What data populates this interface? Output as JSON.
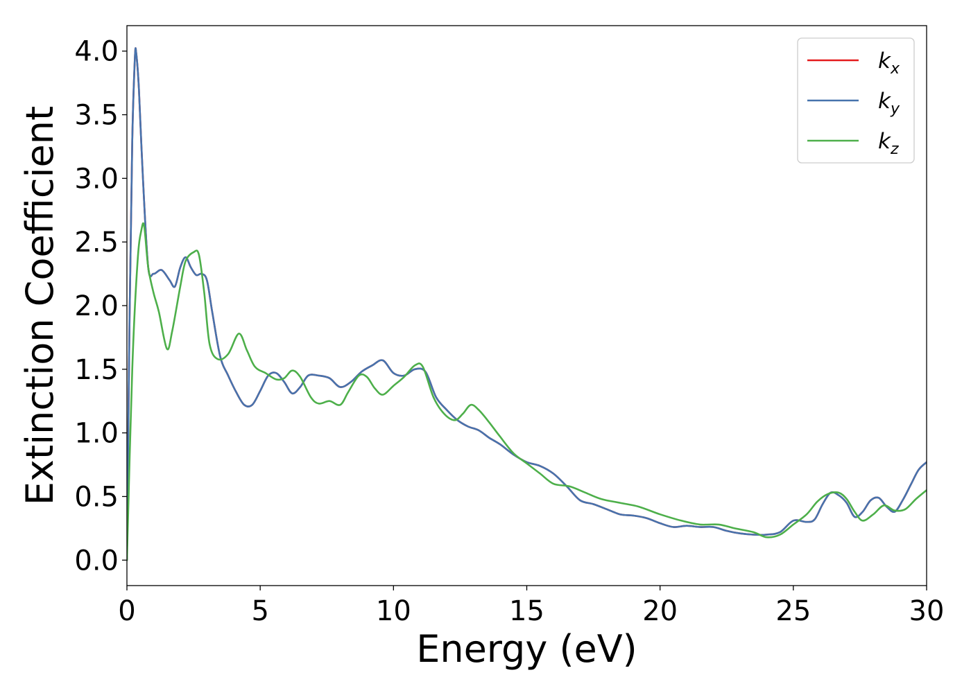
{
  "chart_data": {
    "type": "line",
    "title": "",
    "xlabel": "Energy (eV)",
    "ylabel": "Extinction Coefficient",
    "xlim": [
      0,
      30
    ],
    "ylim": [
      -0.2,
      4.2
    ],
    "grid": false,
    "legend_position": "top-right",
    "x_ticks": [
      0,
      5,
      10,
      15,
      20,
      25,
      30
    ],
    "x_tick_labels": [
      "0",
      "5",
      "10",
      "15",
      "20",
      "25",
      "30"
    ],
    "y_ticks": [
      0.0,
      0.5,
      1.0,
      1.5,
      2.0,
      2.5,
      3.0,
      3.5,
      4.0
    ],
    "y_tick_labels": [
      "0.0",
      "0.5",
      "1.0",
      "1.5",
      "2.0",
      "2.5",
      "3.0",
      "3.5",
      "4.0"
    ],
    "series": [
      {
        "name": "k_x",
        "label_base": "k",
        "label_sub": "x",
        "color": "#e41a1c",
        "x": [
          0,
          0.1,
          0.2,
          0.3,
          0.35,
          0.45,
          0.6,
          0.8,
          1.0,
          1.3,
          1.6,
          1.8,
          2.0,
          2.2,
          2.4,
          2.6,
          2.8,
          3.0,
          3.2,
          3.5,
          3.8,
          4.1,
          4.4,
          4.7,
          5.0,
          5.3,
          5.6,
          5.9,
          6.2,
          6.5,
          6.8,
          7.2,
          7.6,
          8.0,
          8.4,
          8.8,
          9.2,
          9.6,
          10.0,
          10.4,
          10.8,
          11.2,
          11.6,
          12.0,
          12.4,
          12.8,
          13.2,
          13.6,
          14.0,
          14.5,
          15.0,
          15.5,
          16.0,
          16.5,
          17.0,
          17.5,
          18.0,
          18.5,
          19.0,
          19.5,
          20.0,
          20.5,
          21.0,
          21.5,
          22.0,
          22.5,
          23.0,
          23.5,
          24.0,
          24.5,
          25.0,
          25.5,
          25.8,
          26.1,
          26.4,
          26.7,
          27.0,
          27.3,
          27.6,
          27.9,
          28.2,
          28.5,
          28.8,
          29.1,
          29.4,
          29.7,
          30.0
        ],
        "values": [
          0,
          1.9,
          3.3,
          3.95,
          3.98,
          3.7,
          3.0,
          2.3,
          2.25,
          2.28,
          2.2,
          2.15,
          2.3,
          2.38,
          2.3,
          2.24,
          2.25,
          2.2,
          1.95,
          1.6,
          1.45,
          1.32,
          1.22,
          1.22,
          1.33,
          1.45,
          1.47,
          1.4,
          1.31,
          1.36,
          1.45,
          1.45,
          1.43,
          1.36,
          1.4,
          1.48,
          1.53,
          1.57,
          1.47,
          1.45,
          1.5,
          1.48,
          1.28,
          1.18,
          1.1,
          1.05,
          1.02,
          0.96,
          0.91,
          0.83,
          0.77,
          0.74,
          0.68,
          0.58,
          0.47,
          0.44,
          0.4,
          0.36,
          0.35,
          0.33,
          0.29,
          0.26,
          0.27,
          0.26,
          0.26,
          0.23,
          0.21,
          0.2,
          0.2,
          0.22,
          0.31,
          0.3,
          0.32,
          0.44,
          0.53,
          0.51,
          0.45,
          0.34,
          0.38,
          0.47,
          0.49,
          0.42,
          0.38,
          0.47,
          0.59,
          0.71,
          0.77
        ]
      },
      {
        "name": "k_y",
        "label_base": "k",
        "label_sub": "y",
        "color": "#4673ad",
        "x": [
          0,
          0.1,
          0.2,
          0.3,
          0.35,
          0.45,
          0.6,
          0.8,
          1.0,
          1.3,
          1.6,
          1.8,
          2.0,
          2.2,
          2.4,
          2.6,
          2.8,
          3.0,
          3.2,
          3.5,
          3.8,
          4.1,
          4.4,
          4.7,
          5.0,
          5.3,
          5.6,
          5.9,
          6.2,
          6.5,
          6.8,
          7.2,
          7.6,
          8.0,
          8.4,
          8.8,
          9.2,
          9.6,
          10.0,
          10.4,
          10.8,
          11.2,
          11.6,
          12.0,
          12.4,
          12.8,
          13.2,
          13.6,
          14.0,
          14.5,
          15.0,
          15.5,
          16.0,
          16.5,
          17.0,
          17.5,
          18.0,
          18.5,
          19.0,
          19.5,
          20.0,
          20.5,
          21.0,
          21.5,
          22.0,
          22.5,
          23.0,
          23.5,
          24.0,
          24.5,
          25.0,
          25.5,
          25.8,
          26.1,
          26.4,
          26.7,
          27.0,
          27.3,
          27.6,
          27.9,
          28.2,
          28.5,
          28.8,
          29.1,
          29.4,
          29.7,
          30.0
        ],
        "values": [
          0,
          1.9,
          3.3,
          3.95,
          3.98,
          3.7,
          3.0,
          2.3,
          2.25,
          2.28,
          2.2,
          2.15,
          2.3,
          2.38,
          2.3,
          2.24,
          2.25,
          2.2,
          1.95,
          1.6,
          1.45,
          1.32,
          1.22,
          1.22,
          1.33,
          1.45,
          1.47,
          1.4,
          1.31,
          1.36,
          1.45,
          1.45,
          1.43,
          1.36,
          1.4,
          1.48,
          1.53,
          1.57,
          1.47,
          1.45,
          1.5,
          1.48,
          1.28,
          1.18,
          1.1,
          1.05,
          1.02,
          0.96,
          0.91,
          0.83,
          0.77,
          0.74,
          0.68,
          0.58,
          0.47,
          0.44,
          0.4,
          0.36,
          0.35,
          0.33,
          0.29,
          0.26,
          0.27,
          0.26,
          0.26,
          0.23,
          0.21,
          0.2,
          0.2,
          0.22,
          0.31,
          0.3,
          0.32,
          0.44,
          0.53,
          0.51,
          0.45,
          0.34,
          0.38,
          0.47,
          0.49,
          0.42,
          0.38,
          0.47,
          0.59,
          0.71,
          0.77
        ]
      },
      {
        "name": "k_z",
        "label_base": "k",
        "label_sub": "z",
        "color": "#4daf4a",
        "x": [
          0,
          0.2,
          0.4,
          0.55,
          0.65,
          0.8,
          1.0,
          1.2,
          1.5,
          1.7,
          2.0,
          2.2,
          2.5,
          2.7,
          2.9,
          3.1,
          3.4,
          3.8,
          4.2,
          4.5,
          4.8,
          5.2,
          5.6,
          5.9,
          6.2,
          6.5,
          6.9,
          7.2,
          7.6,
          8.0,
          8.3,
          8.7,
          9.0,
          9.3,
          9.6,
          10.0,
          10.4,
          10.8,
          11.1,
          11.5,
          11.9,
          12.3,
          12.6,
          12.9,
          13.2,
          13.6,
          14.0,
          14.5,
          15.0,
          15.5,
          16.0,
          16.6,
          17.2,
          17.8,
          18.5,
          19.2,
          20.0,
          20.8,
          21.5,
          22.2,
          22.8,
          23.5,
          24.0,
          24.5,
          25.0,
          25.5,
          25.9,
          26.3,
          26.7,
          27.0,
          27.3,
          27.6,
          28.0,
          28.4,
          28.8,
          29.2,
          29.6,
          30.0
        ],
        "values": [
          0,
          1.5,
          2.35,
          2.6,
          2.62,
          2.3,
          2.1,
          1.95,
          1.66,
          1.8,
          2.15,
          2.35,
          2.42,
          2.4,
          2.1,
          1.7,
          1.58,
          1.62,
          1.78,
          1.65,
          1.52,
          1.47,
          1.42,
          1.43,
          1.49,
          1.44,
          1.28,
          1.23,
          1.25,
          1.22,
          1.32,
          1.45,
          1.44,
          1.35,
          1.3,
          1.37,
          1.44,
          1.53,
          1.52,
          1.28,
          1.15,
          1.1,
          1.15,
          1.22,
          1.18,
          1.08,
          0.97,
          0.84,
          0.76,
          0.68,
          0.6,
          0.58,
          0.53,
          0.48,
          0.45,
          0.42,
          0.36,
          0.31,
          0.28,
          0.28,
          0.25,
          0.22,
          0.18,
          0.2,
          0.28,
          0.36,
          0.46,
          0.52,
          0.53,
          0.48,
          0.38,
          0.31,
          0.36,
          0.43,
          0.39,
          0.4,
          0.48,
          0.55
        ]
      }
    ]
  }
}
